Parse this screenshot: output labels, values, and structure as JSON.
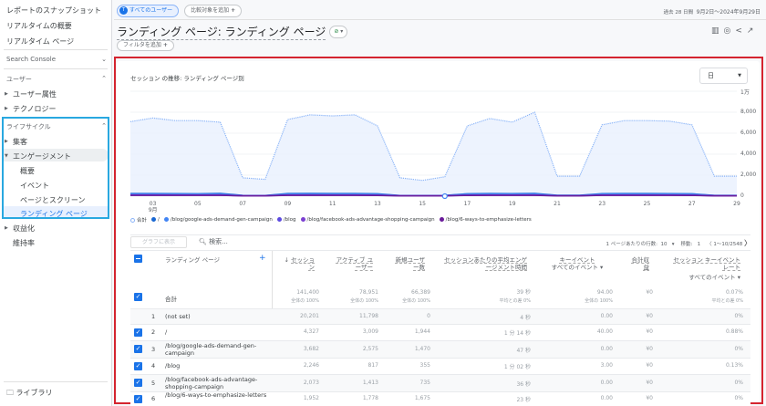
{
  "sidebar": {
    "items": [
      "レポートのスナップショット",
      "リアルタイムの概要",
      "リアルタイム ページ"
    ],
    "search_console": "Search Console",
    "user_section": "ユーザー",
    "user_items": [
      "ユーザー属性",
      "テクノロジー"
    ],
    "lifecycle": "ライフサイクル",
    "acquisition": "集客",
    "engagement": "エンゲージメント",
    "engagement_items": [
      "概要",
      "イベント",
      "ページとスクリーン",
      "ランディング ページ"
    ],
    "monetization": "収益化",
    "retention": "維持率",
    "library": "ライブラリ"
  },
  "header": {
    "segment": "すべてのユーザー",
    "segment_avatar": "T",
    "add_comparison": "比較対象を追加",
    "date_label": "過去 28 日間",
    "date_range": "9月2日～2024年9月29日",
    "title": "ランディング ページ: ランディング ページ",
    "add_filter": "フィルタを追加"
  },
  "chart_data": {
    "type": "line",
    "title": "セッション の推移: ランディング ページ別",
    "granularity": "日",
    "x": [
      "02",
      "03",
      "04",
      "05",
      "06",
      "07",
      "08",
      "09",
      "10",
      "11",
      "12",
      "13",
      "14",
      "15",
      "16",
      "17",
      "18",
      "19",
      "20",
      "21",
      "22",
      "23",
      "24",
      "25",
      "26",
      "27",
      "28",
      "29"
    ],
    "x_ticks": [
      "03",
      "05",
      "07",
      "09",
      "11",
      "13",
      "15",
      "17",
      "19",
      "21",
      "23",
      "25",
      "27",
      "29"
    ],
    "x_month": "9月",
    "y_ticks": [
      "0",
      "2,000",
      "4,000",
      "6,000",
      "8,000",
      "1万"
    ],
    "ylim": [
      0,
      10000
    ],
    "grid": true,
    "legend": "bottom-left",
    "series": [
      {
        "name": "合計",
        "color": "#8ab4f8",
        "values": [
          7100,
          7450,
          7200,
          7200,
          7050,
          1750,
          1600,
          7300,
          7750,
          7650,
          7750,
          6700,
          1750,
          1500,
          1850,
          6700,
          7400,
          7050,
          8000,
          1900,
          1900,
          6800,
          7200,
          7200,
          7150,
          6800,
          1900,
          1900
        ]
      },
      {
        "name": "/",
        "color": "#1967d2",
        "values": [
          250,
          250,
          240,
          230,
          260,
          80,
          70,
          250,
          260,
          250,
          250,
          230,
          70,
          60,
          80,
          230,
          250,
          240,
          260,
          90,
          90,
          240,
          250,
          250,
          240,
          230,
          80,
          80
        ]
      },
      {
        "name": "/blog/google-ads-demand-gen-campaign",
        "color": "#4285f4",
        "values": [
          200,
          210,
          200,
          200,
          200,
          60,
          50,
          200,
          210,
          200,
          200,
          190,
          50,
          50,
          60,
          190,
          200,
          200,
          210,
          60,
          60,
          200,
          200,
          200,
          200,
          190,
          60,
          60
        ]
      },
      {
        "name": "/blog",
        "color": "#5c4ae0",
        "values": [
          120,
          120,
          110,
          110,
          120,
          40,
          40,
          110,
          120,
          110,
          110,
          100,
          40,
          40,
          40,
          100,
          110,
          110,
          120,
          40,
          40,
          110,
          110,
          110,
          110,
          100,
          40,
          40
        ]
      },
      {
        "name": "/blog/facebook-ads-advantage-shopping-campaign",
        "color": "#7b3fd1",
        "values": [
          90,
          90,
          90,
          90,
          90,
          30,
          30,
          90,
          90,
          90,
          90,
          80,
          30,
          30,
          30,
          80,
          90,
          90,
          90,
          30,
          30,
          90,
          90,
          90,
          90,
          80,
          30,
          30
        ]
      },
      {
        "name": "/blog/6-ways-to-emphasize-letters",
        "color": "#6a1b9a",
        "values": [
          80,
          80,
          80,
          80,
          80,
          30,
          30,
          80,
          80,
          80,
          80,
          70,
          30,
          30,
          30,
          70,
          80,
          80,
          80,
          30,
          30,
          80,
          80,
          80,
          80,
          70,
          30,
          30
        ]
      }
    ]
  },
  "table": {
    "plot_button": "グラフに表示",
    "search_placeholder": "検索...",
    "rows_per_page_label": "1 ページあたりの行数:",
    "rows_per_page": "10",
    "goto_label": "移動:",
    "goto_value": "1",
    "pagination": "1～10/2548",
    "headers": {
      "page": "ランディング ページ",
      "sessions": "セッション",
      "active_users": "アクティブ ユーザー",
      "new_users": "新規ユーザー数",
      "avg_engagement": "セッションあたりの平均エンゲージメント時間",
      "key_events": "キーイベント",
      "key_events_filter": "すべてのイベント",
      "revenue": "合計収益",
      "key_event_rate": "セッション キーイベント レート",
      "rate_filter": "すべてのイベント"
    },
    "total": {
      "label": "合計",
      "values": [
        "141,400",
        "78,951",
        "66,389",
        "39 秒",
        "94.00",
        "¥0",
        "0.07%"
      ],
      "subs": [
        "全体の 100%",
        "全体の 100%",
        "全体の 100%",
        "平均との差 0%",
        "全体の 100%",
        "",
        "平均との差 0%"
      ]
    },
    "rows": [
      {
        "rank": "1",
        "page": "(not set)",
        "values": [
          "20,201",
          "11,798",
          "0",
          "4 秒",
          "0.00",
          "¥0",
          "0%"
        ]
      },
      {
        "rank": "2",
        "page": "/",
        "values": [
          "4,327",
          "3,009",
          "1,944",
          "1 分 14 秒",
          "40.00",
          "¥0",
          "0.88%"
        ]
      },
      {
        "rank": "3",
        "page": "/blog/google-ads-demand-gen-campaign",
        "values": [
          "3,682",
          "2,575",
          "1,470",
          "47 秒",
          "0.00",
          "¥0",
          "0%"
        ]
      },
      {
        "rank": "4",
        "page": "/blog",
        "values": [
          "2,246",
          "817",
          "355",
          "1 分 02 秒",
          "3.00",
          "¥0",
          "0.13%"
        ]
      },
      {
        "rank": "5",
        "page": "/blog/facebook-ads-advantage-shopping-campaign",
        "values": [
          "2,073",
          "1,413",
          "735",
          "36 秒",
          "0.00",
          "¥0",
          "0%"
        ]
      },
      {
        "rank": "6",
        "page": "/blog/6-ways-to-emphasize-letters",
        "values": [
          "1,952",
          "1,778",
          "1,675",
          "23 秒",
          "0.00",
          "¥0",
          "0%"
        ]
      }
    ]
  }
}
